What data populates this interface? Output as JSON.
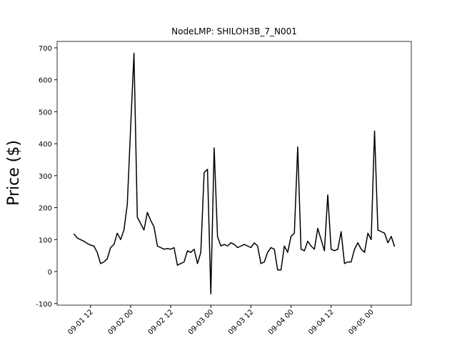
{
  "chart_data": {
    "type": "line",
    "title": "NodeLMP: SHILOH3B_7_N001",
    "ylabel": "Price ($)",
    "color": "#000000",
    "x": [
      "09-01 07",
      "09-01 08",
      "09-01 09",
      "09-01 10",
      "09-01 11",
      "09-01 12",
      "09-01 13",
      "09-01 14",
      "09-01 15",
      "09-01 16",
      "09-01 17",
      "09-01 18",
      "09-01 19",
      "09-01 20",
      "09-01 21",
      "09-01 22",
      "09-01 23",
      "09-02 00",
      "09-02 01",
      "09-02 02",
      "09-02 03",
      "09-02 04",
      "09-02 05",
      "09-02 06",
      "09-02 07",
      "09-02 08",
      "09-02 09",
      "09-02 10",
      "09-02 11",
      "09-02 12",
      "09-02 13",
      "09-02 14",
      "09-02 15",
      "09-02 16",
      "09-02 17",
      "09-02 18",
      "09-02 19",
      "09-02 20",
      "09-02 21",
      "09-02 22",
      "09-02 23",
      "09-03 00",
      "09-03 01",
      "09-03 02",
      "09-03 03",
      "09-03 04",
      "09-03 05",
      "09-03 06",
      "09-03 07",
      "09-03 08",
      "09-03 09",
      "09-03 10",
      "09-03 11",
      "09-03 12",
      "09-03 13",
      "09-03 14",
      "09-03 15",
      "09-03 16",
      "09-03 17",
      "09-03 18",
      "09-03 19",
      "09-03 20",
      "09-03 21",
      "09-03 22",
      "09-03 23",
      "09-04 00",
      "09-04 01",
      "09-04 02",
      "09-04 03",
      "09-04 04",
      "09-04 05",
      "09-04 06",
      "09-04 07",
      "09-04 08",
      "09-04 09",
      "09-04 10",
      "09-04 11",
      "09-04 12",
      "09-04 13",
      "09-04 14",
      "09-04 15",
      "09-04 16",
      "09-04 17",
      "09-04 18",
      "09-04 19",
      "09-04 20",
      "09-04 21",
      "09-04 22",
      "09-04 23",
      "09-05 00",
      "09-05 01",
      "09-05 02",
      "09-05 03",
      "09-05 04",
      "09-05 05",
      "09-05 06",
      "09-05 07"
    ],
    "values": [
      118,
      105,
      100,
      95,
      88,
      83,
      80,
      60,
      25,
      30,
      40,
      75,
      85,
      120,
      100,
      130,
      210,
      450,
      683,
      170,
      150,
      130,
      185,
      160,
      140,
      80,
      75,
      70,
      72,
      70,
      75,
      20,
      25,
      30,
      65,
      60,
      70,
      25,
      60,
      310,
      320,
      -70,
      387,
      110,
      80,
      85,
      80,
      90,
      85,
      75,
      80,
      85,
      80,
      75,
      90,
      80,
      25,
      30,
      60,
      75,
      70,
      5,
      5,
      80,
      60,
      110,
      120,
      390,
      70,
      65,
      95,
      80,
      70,
      135,
      100,
      65,
      240,
      70,
      65,
      70,
      125,
      25,
      30,
      30,
      70,
      90,
      70,
      60,
      120,
      100,
      440,
      130,
      125,
      120,
      90,
      110,
      78
    ],
    "xlim": [
      "09-01 02",
      "09-05 12"
    ],
    "xticks": [
      "09-01 12",
      "09-02 00",
      "09-02 12",
      "09-03 00",
      "09-03 12",
      "09-04 00",
      "09-04 12",
      "09-05 00"
    ],
    "ylim": [
      -105,
      720
    ],
    "yticks": [
      -100,
      0,
      100,
      200,
      300,
      400,
      500,
      600,
      700
    ]
  }
}
